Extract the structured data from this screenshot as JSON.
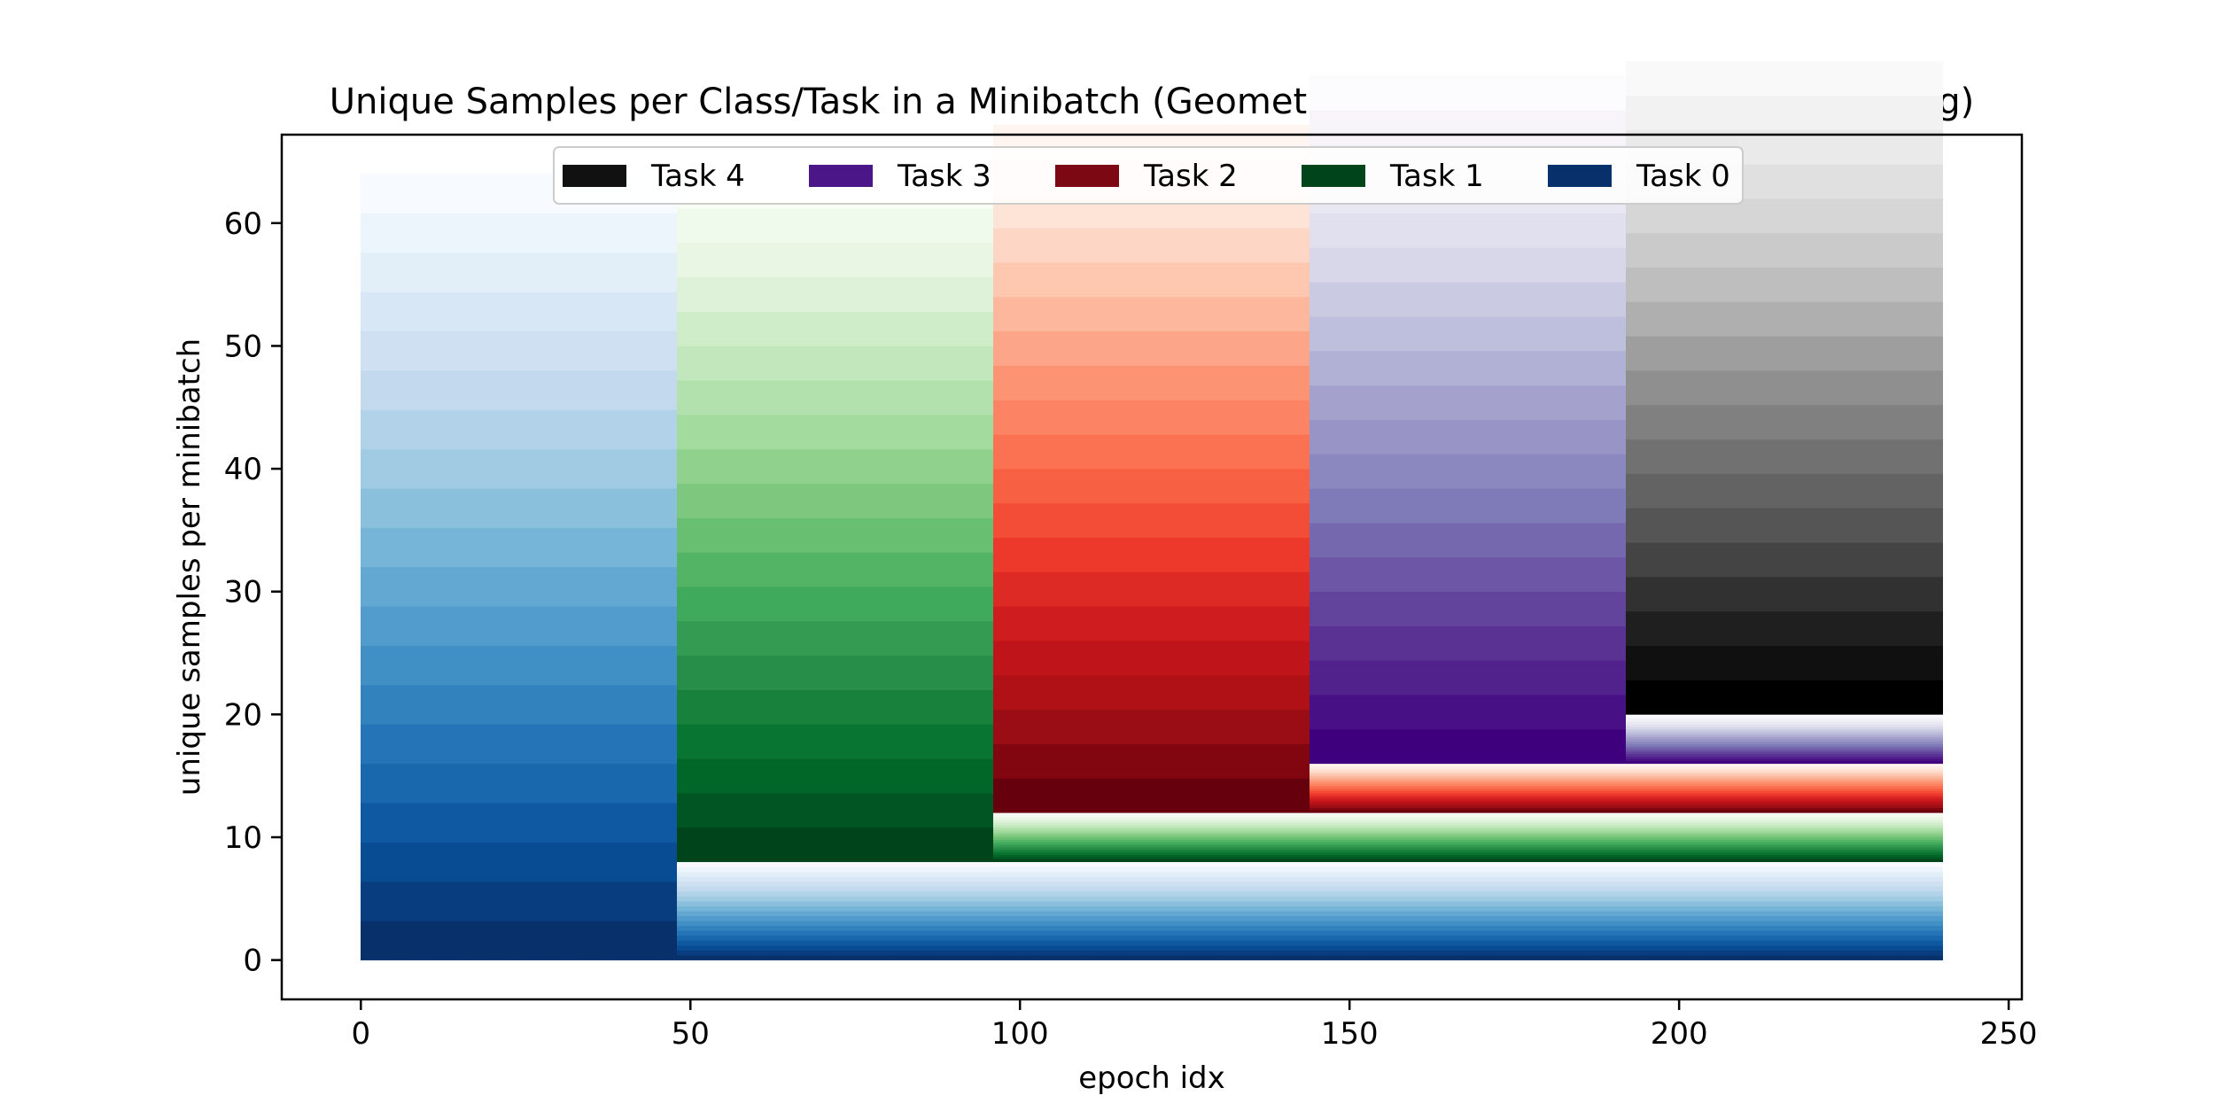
{
  "chart_data": {
    "type": "bar",
    "title": "Unique Samples per Class/Task in a Minibatch (GeometricAwareSamplingStrategyScattering)",
    "xlabel": "epoch idx",
    "ylabel": "unique samples per minibatch",
    "xlim": [
      -12,
      252
    ],
    "ylim": [
      -3.2,
      67.2
    ],
    "xticks": [
      0,
      50,
      100,
      150,
      200,
      250
    ],
    "yticks": [
      0,
      10,
      20,
      30,
      40,
      50,
      60
    ],
    "grid": false,
    "legend_placement": "upper center",
    "legend": [
      {
        "name": "Task 4",
        "color": "#111111"
      },
      {
        "name": "Task 3",
        "color": "#4b1687"
      },
      {
        "name": "Task 2",
        "color": "#7c0813"
      },
      {
        "name": "Task 1",
        "color": "#00441b"
      },
      {
        "name": "Task 0",
        "color": "#08306b"
      }
    ],
    "bar_width_epochs": 1,
    "series": [
      {
        "task": 0,
        "colormap": "Blues",
        "epochs": [
          0,
          240
        ],
        "classes": 20,
        "samples_per_class": {
          "0-47": 3.2,
          "48-239": 0.4
        }
      },
      {
        "task": 1,
        "colormap": "Greens",
        "epochs": [
          48,
          240
        ],
        "classes": 20,
        "samples_per_class": {
          "48-95": 2.8,
          "96-239": 0.2
        }
      },
      {
        "task": 2,
        "colormap": "Reds",
        "epochs": [
          96,
          240
        ],
        "classes": 20,
        "samples_per_class": {
          "96-143": 2.8,
          "144-239": 0.2
        }
      },
      {
        "task": 3,
        "colormap": "Purples",
        "epochs": [
          144,
          240
        ],
        "classes": 20,
        "samples_per_class": {
          "144-191": 2.8,
          "192-239": 0.2
        }
      },
      {
        "task": 4,
        "colormap": "Greys",
        "epochs": [
          192,
          240
        ],
        "classes": 20,
        "samples_per_class": {
          "192-239": 2.8
        }
      }
    ],
    "colormaps": {
      "Blues": [
        "#08306b",
        "#08519c",
        "#2171b5",
        "#4292c6",
        "#6baed6",
        "#9ecae1",
        "#c6dbef",
        "#deebf7",
        "#f7fbff"
      ],
      "Greens": [
        "#00441b",
        "#006d2c",
        "#238b45",
        "#41ab5d",
        "#74c476",
        "#a1d99b",
        "#c7e9c0",
        "#e5f5e0",
        "#f7fcf5"
      ],
      "Reds": [
        "#67000d",
        "#a50f15",
        "#cb181d",
        "#ef3b2c",
        "#fb6a4a",
        "#fc9272",
        "#fcbba1",
        "#fee0d2",
        "#fff5f0"
      ],
      "Purples": [
        "#3f007d",
        "#54278f",
        "#6a51a3",
        "#807dba",
        "#9e9ac8",
        "#bcbddc",
        "#dadaeb",
        "#efedf5",
        "#fcfbfd"
      ],
      "Greys": [
        "#000000",
        "#252525",
        "#525252",
        "#737373",
        "#969696",
        "#bdbdbd",
        "#d9d9d9",
        "#f0f0f0",
        "#ffffff"
      ]
    }
  }
}
